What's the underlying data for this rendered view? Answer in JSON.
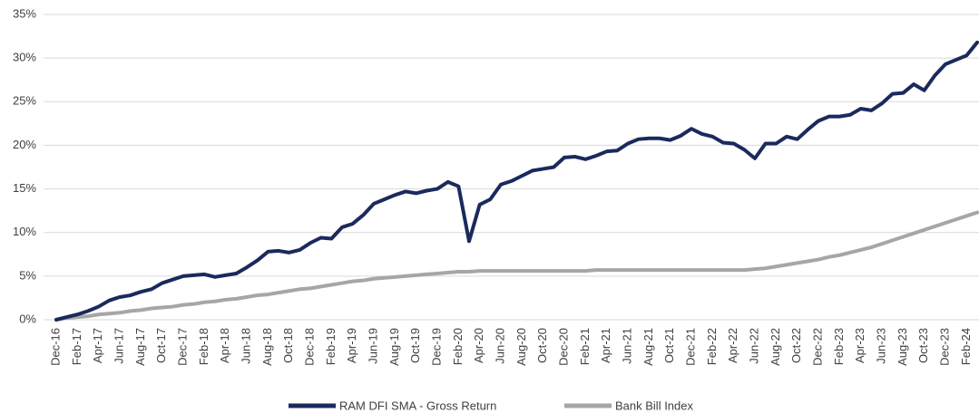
{
  "chart_data": {
    "type": "line",
    "categories": [
      "Dec-16",
      null,
      "Feb-17",
      null,
      "Apr-17",
      null,
      "Jun-17",
      null,
      "Aug-17",
      null,
      "Oct-17",
      null,
      "Dec-17",
      null,
      "Feb-18",
      null,
      "Apr-18",
      null,
      "Jun-18",
      null,
      "Aug-18",
      null,
      "Oct-18",
      null,
      "Dec-18",
      null,
      "Feb-19",
      null,
      "Apr-19",
      null,
      "Jun-19",
      null,
      "Aug-19",
      null,
      "Oct-19",
      null,
      "Dec-19",
      null,
      "Feb-20",
      null,
      "Apr-20",
      null,
      "Jun-20",
      null,
      "Aug-20",
      null,
      "Oct-20",
      null,
      "Dec-20",
      null,
      "Feb-21",
      null,
      "Apr-21",
      null,
      "Jun-21",
      null,
      "Aug-21",
      null,
      "Oct-21",
      null,
      "Dec-21",
      null,
      "Feb-22",
      null,
      "Apr-22",
      null,
      "Jun-22",
      null,
      "Aug-22",
      null,
      "Oct-22",
      null,
      "Dec-22",
      null,
      "Feb-23",
      null,
      "Apr-23",
      null,
      "Jun-23",
      null,
      "Aug-23",
      null,
      "Oct-23",
      null,
      "Dec-23",
      null,
      "Feb-24",
      null
    ],
    "series": [
      {
        "name": "RAM DFI SMA - Gross Return",
        "color": "#1b2a5c",
        "values": [
          0,
          0.3,
          0.6,
          1.0,
          1.5,
          2.2,
          2.6,
          2.8,
          3.2,
          3.5,
          4.2,
          4.6,
          5.0,
          5.1,
          5.2,
          4.9,
          5.1,
          5.3,
          6.0,
          6.8,
          7.8,
          7.9,
          7.7,
          8.0,
          8.8,
          9.4,
          9.3,
          10.6,
          11.0,
          12.0,
          13.3,
          13.8,
          14.3,
          14.7,
          14.5,
          14.8,
          15.0,
          15.8,
          15.3,
          9.0,
          13.2,
          13.8,
          15.5,
          15.9,
          16.5,
          17.1,
          17.3,
          17.5,
          18.6,
          18.7,
          18.4,
          18.8,
          19.3,
          19.4,
          20.2,
          20.7,
          20.8,
          20.8,
          20.6,
          21.1,
          21.9,
          21.3,
          21.0,
          20.3,
          20.2,
          19.5,
          18.5,
          20.2,
          20.2,
          21.0,
          20.7,
          21.8,
          22.8,
          23.3,
          23.3,
          23.5,
          24.2,
          24.0,
          24.8,
          25.9,
          26.0,
          27.0,
          26.3,
          28.0,
          29.3,
          29.8,
          30.3,
          31.8
        ]
      },
      {
        "name": "Bank Bill Index",
        "color": "#a6a6a6",
        "values": [
          0,
          0.2,
          0.3,
          0.4,
          0.6,
          0.7,
          0.8,
          1.0,
          1.1,
          1.3,
          1.4,
          1.5,
          1.7,
          1.8,
          2.0,
          2.1,
          2.3,
          2.4,
          2.6,
          2.8,
          2.9,
          3.1,
          3.3,
          3.5,
          3.6,
          3.8,
          4.0,
          4.2,
          4.4,
          4.5,
          4.7,
          4.8,
          4.9,
          5.0,
          5.1,
          5.2,
          5.3,
          5.4,
          5.5,
          5.5,
          5.6,
          5.6,
          5.6,
          5.6,
          5.6,
          5.6,
          5.6,
          5.6,
          5.6,
          5.6,
          5.6,
          5.7,
          5.7,
          5.7,
          5.7,
          5.7,
          5.7,
          5.7,
          5.7,
          5.7,
          5.7,
          5.7,
          5.7,
          5.7,
          5.7,
          5.7,
          5.8,
          5.9,
          6.1,
          6.3,
          6.5,
          6.7,
          6.9,
          7.2,
          7.4,
          7.7,
          8.0,
          8.3,
          8.7,
          9.1,
          9.5,
          9.9,
          10.3,
          10.7,
          11.1,
          11.5,
          11.9,
          12.3
        ]
      }
    ],
    "ylim": [
      0,
      35
    ],
    "yticks": [
      {
        "value": 0,
        "label": "0%"
      },
      {
        "value": 5,
        "label": "5%"
      },
      {
        "value": 10,
        "label": "10%"
      },
      {
        "value": 15,
        "label": "15%"
      },
      {
        "value": 20,
        "label": "20%"
      },
      {
        "value": 25,
        "label": "25%"
      },
      {
        "value": 30,
        "label": "30%"
      },
      {
        "value": 35,
        "label": "35%"
      }
    ],
    "grid": true,
    "legend": "bottom"
  }
}
